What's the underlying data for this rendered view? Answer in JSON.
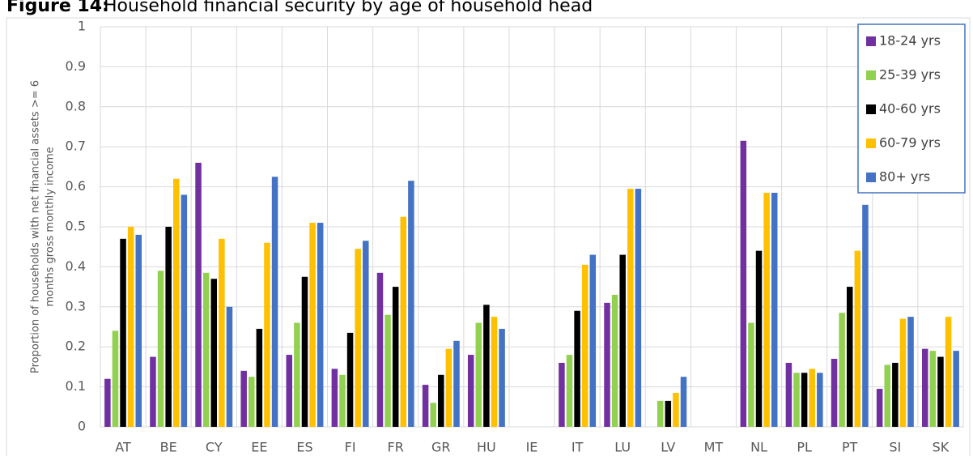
{
  "chart_data": {
    "type": "bar",
    "title_label": "Figure 14:",
    "title": "Household financial security by age of household head",
    "y_label": [
      "Proportion of households with net financial assets >= 6",
      "months gross monthly income"
    ],
    "categories": [
      "AT",
      "BE",
      "CY",
      "EE",
      "ES",
      "FI",
      "FR",
      "GR",
      "HU",
      "IE",
      "IT",
      "LU",
      "LV",
      "MT",
      "NL",
      "PL",
      "PT",
      "SI",
      "SK"
    ],
    "series": [
      {
        "name": "18-24 yrs",
        "color": "#7030a0",
        "values": [
          0.12,
          0.175,
          0.66,
          0.14,
          0.18,
          0.145,
          0.385,
          0.105,
          0.18,
          null,
          0.16,
          0.31,
          null,
          null,
          0.715,
          0.16,
          0.17,
          0.095,
          0.195
        ]
      },
      {
        "name": "25-39 yrs",
        "color": "#92d050",
        "values": [
          0.24,
          0.39,
          0.385,
          0.125,
          0.26,
          0.13,
          0.28,
          0.06,
          0.26,
          null,
          0.18,
          0.33,
          0.065,
          null,
          0.26,
          0.135,
          0.285,
          0.155,
          0.19
        ]
      },
      {
        "name": "40-60 yrs",
        "color": "#000000",
        "values": [
          0.47,
          0.5,
          0.37,
          0.245,
          0.375,
          0.235,
          0.35,
          0.13,
          0.305,
          null,
          0.29,
          0.43,
          0.065,
          null,
          0.44,
          0.135,
          0.35,
          0.16,
          0.175
        ]
      },
      {
        "name": "60-79 yrs",
        "color": "#ffc000",
        "values": [
          0.5,
          0.62,
          0.47,
          0.46,
          0.51,
          0.445,
          0.525,
          0.195,
          0.275,
          null,
          0.405,
          0.595,
          0.085,
          null,
          0.585,
          0.145,
          0.44,
          0.27,
          0.275
        ]
      },
      {
        "name": "80+ yrs",
        "color": "#4472c4",
        "values": [
          0.48,
          0.58,
          0.3,
          0.625,
          0.51,
          0.465,
          0.615,
          0.215,
          0.245,
          null,
          0.43,
          0.595,
          0.125,
          null,
          0.585,
          0.135,
          0.555,
          0.275,
          0.19
        ]
      }
    ],
    "ylim": [
      0,
      1
    ],
    "yticks": [
      0,
      0.1,
      0.2,
      0.3,
      0.4,
      0.5,
      0.6,
      0.7,
      0.8,
      0.9,
      1
    ],
    "grid": true,
    "legend": "top-right"
  }
}
